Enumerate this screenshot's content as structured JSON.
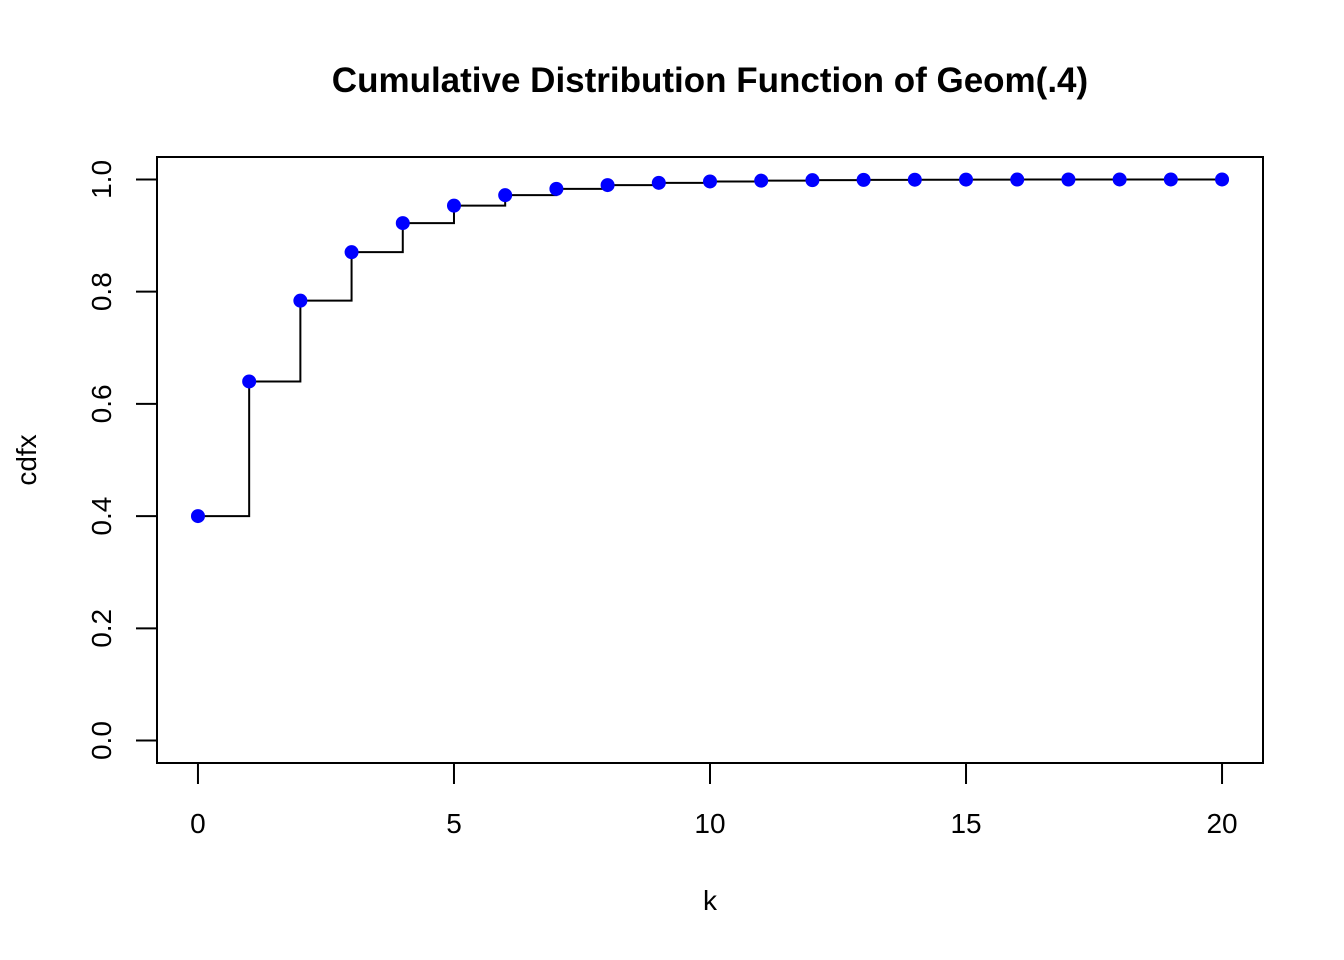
{
  "chart_data": {
    "type": "scatter",
    "title": "Cumulative Distribution Function of Geom(.4)",
    "xlabel": "k",
    "ylabel": "cdfx",
    "xlim": [
      -0.8,
      20.8
    ],
    "ylim": [
      -0.04,
      1.04
    ],
    "x_ticks": [
      0,
      5,
      10,
      15,
      20
    ],
    "x_tick_labels": [
      "0",
      "5",
      "10",
      "15",
      "20"
    ],
    "y_ticks": [
      0.0,
      0.2,
      0.4,
      0.6,
      0.8,
      1.0
    ],
    "y_tick_labels": [
      "0.0",
      "0.2",
      "0.4",
      "0.6",
      "0.8",
      "1.0"
    ],
    "grid": false,
    "step_line": true,
    "point_color": "#0000FF",
    "line_color": "#000000",
    "x": [
      0,
      1,
      2,
      3,
      4,
      5,
      6,
      7,
      8,
      9,
      10,
      11,
      12,
      13,
      14,
      15,
      16,
      17,
      18,
      19,
      20
    ],
    "y": [
      0.4,
      0.64,
      0.784,
      0.8704,
      0.92224,
      0.953344,
      0.9720064,
      0.9832038,
      0.9899223,
      0.9939534,
      0.996372,
      0.9978232,
      0.9986939,
      0.9992164,
      0.9995298,
      0.9997179,
      0.9998307,
      0.9998984,
      0.9999391,
      0.9999634,
      0.9999781
    ]
  }
}
